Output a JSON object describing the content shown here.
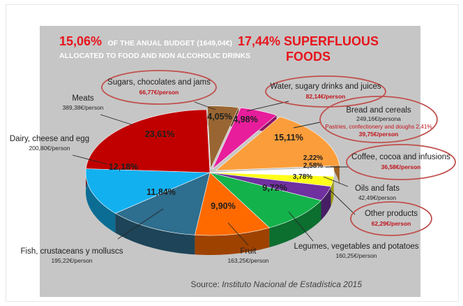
{
  "header": {
    "budget_pct": "15,06%",
    "budget_line1_rest": "OF THE ANUAL BUDGET (1649,04€)",
    "budget_line2": "ALLOCATED TO FOOD AND NON ALCOHOLIC DRINKS",
    "superfluous_line1": "17,44%  SUPERFLUOUS",
    "superfluous_line2": "FOODS"
  },
  "source": {
    "prefix": "Source: ",
    "name": "Instituto Nacional de Estadística 2015"
  },
  "colors": {
    "panel_bg": "#c6c6c6",
    "accent_red": "#c0141c",
    "ellipse": "#c0504d"
  },
  "chart_data": {
    "type": "pie",
    "unit": "%",
    "slices": [
      {
        "key": "sugars",
        "pct_label": "4,05%",
        "value": 4.05,
        "color": "#996633",
        "name": "Sugars, chocolates and jams",
        "amount": "66,77€/person"
      },
      {
        "key": "water",
        "pct_label": "4,98%",
        "value": 4.98,
        "color": "#e71d9c",
        "name": "Water, sugary drinks and juices",
        "amount": "82,14€/person"
      },
      {
        "key": "bread",
        "pct_label": "15,11%",
        "value": 15.11,
        "color": "#fb9d3a",
        "name": "Bread and cereals",
        "amount": "249,16€/persona",
        "note": "Pastries, confectionery and doughs 2,41%",
        "note_amount": "39,75€/person"
      },
      {
        "key": "coffee",
        "pct_label": "2,22%",
        "value": 2.22,
        "color": "#ffffff",
        "name": "Coffee, cocoa and infusions",
        "amount": "36,58€/person"
      },
      {
        "key": "oils",
        "pct_label": "2,58%",
        "value": 2.58,
        "color": "#ffff1a",
        "name": "Oils and fats",
        "amount": "42,49€/person"
      },
      {
        "key": "other",
        "pct_label": "3,78%",
        "value": 3.78,
        "color": "#7030a0",
        "name": "Other products",
        "amount": "62,29€/person"
      },
      {
        "key": "legumes",
        "pct_label": "9,72%",
        "value": 9.72,
        "color": "#14b24b",
        "name": "Legumes, vegetables and potatoes",
        "amount": "160,25€/person"
      },
      {
        "key": "fruit",
        "pct_label": "9,90%",
        "value": 9.9,
        "color": "#ff6a00",
        "name": "Fruit",
        "amount": "163,25€/person"
      },
      {
        "key": "fish",
        "pct_label": "11,84%",
        "value": 11.84,
        "color": "#2e6e8e",
        "name": "Fish, crustaceans y molluscs",
        "amount": "195,22€/person"
      },
      {
        "key": "dairy",
        "pct_label": "12,18%",
        "value": 12.18,
        "color": "#13b0ef",
        "name": "Dairy, cheese and egg",
        "amount": "200,80€/person"
      },
      {
        "key": "meats",
        "pct_label": "23,61%",
        "value": 23.61,
        "color": "#c00000",
        "name": "Meats",
        "amount": "389,38€/person"
      }
    ]
  }
}
